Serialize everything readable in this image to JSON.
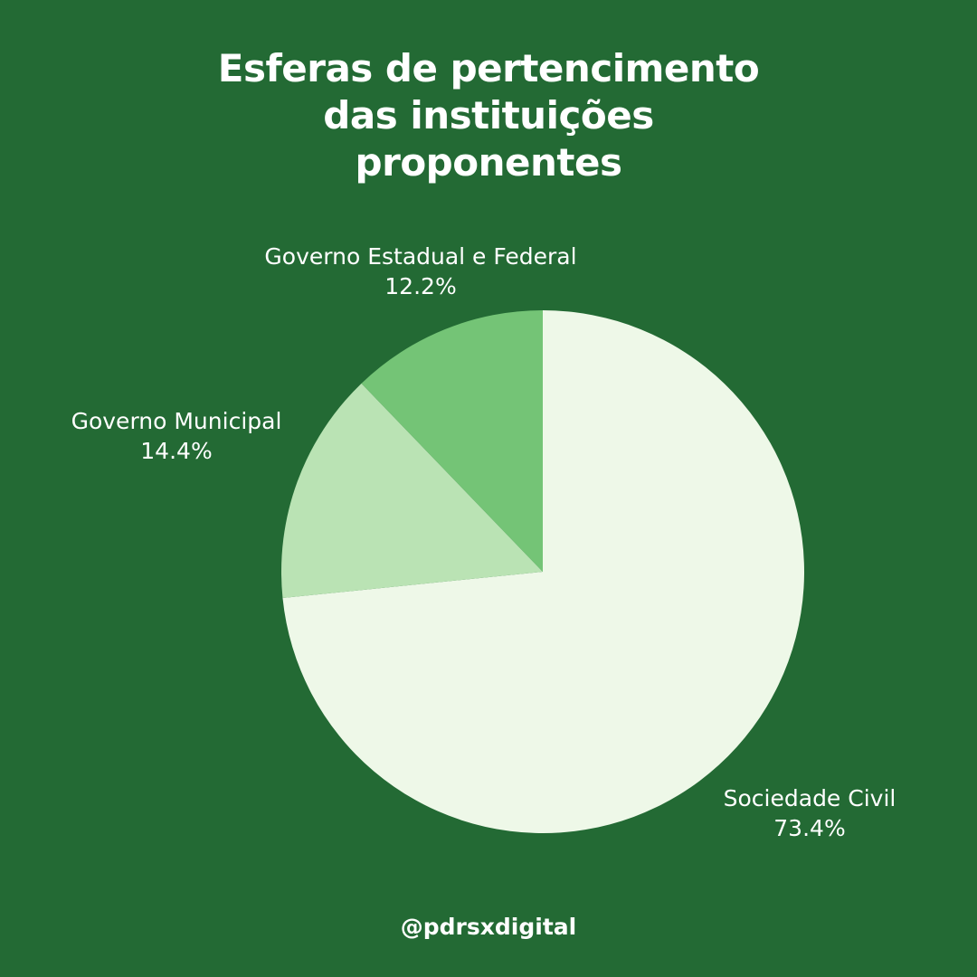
{
  "title_lines": [
    "Esferas de pertencimento",
    "das instituições",
    "proponentes"
  ],
  "handle": "@pdrsxdigital",
  "colors": {
    "background": "#236a34",
    "text": "#ffffff"
  },
  "chart_data": {
    "type": "pie",
    "title": "Esferas de pertencimento das instituições proponentes",
    "slices": [
      {
        "label": "Sociedade Civil",
        "value": 73.4,
        "value_label": "73.4%",
        "color": "#eef8e8"
      },
      {
        "label": "Governo Municipal",
        "value": 14.4,
        "value_label": "14.4%",
        "color": "#bae3b4"
      },
      {
        "label": "Governo Estadual e Federal",
        "value": 12.2,
        "value_label": "12.2%",
        "color": "#74c476"
      }
    ],
    "start": "12 o'clock",
    "direction": "clockwise",
    "legend": "none"
  }
}
